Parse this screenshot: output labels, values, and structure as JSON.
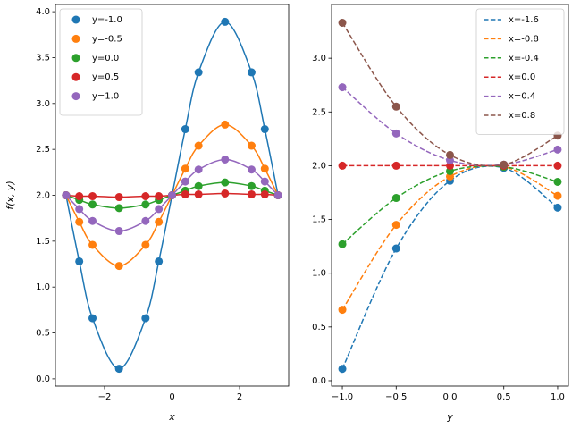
{
  "chart_data": [
    {
      "type": "line",
      "xlabel": "x",
      "ylabel": "f(x, y)",
      "linestyle": "solid",
      "markers": true,
      "legend": "upper left",
      "x": [
        -3.1416,
        -2.7489,
        -2.3562,
        -1.5708,
        -0.7854,
        -0.3927,
        0,
        0.3927,
        0.7854,
        1.5708,
        2.3562,
        2.7489,
        3.1416
      ],
      "xlim": [
        -3.456,
        3.456
      ],
      "xticks": [
        {
          "value": -2,
          "label": "−2"
        },
        0,
        2
      ],
      "ylim": [
        -0.079,
        4.079
      ],
      "yticks": [
        {
          "value": 0,
          "label": "0.0"
        },
        {
          "value": 0.5,
          "label": "0.5"
        },
        {
          "value": 1,
          "label": "1.0"
        },
        {
          "value": 1.5,
          "label": "1.5"
        },
        {
          "value": 2,
          "label": "2.0"
        },
        {
          "value": 2.5,
          "label": "2.5"
        },
        {
          "value": 3,
          "label": "3.0"
        },
        {
          "value": 3.5,
          "label": "3.5"
        },
        {
          "value": 4,
          "label": "4.0"
        }
      ],
      "series": [
        {
          "name": "y=-1.0",
          "color": "#1f77b4",
          "values": [
            2,
            1.28,
            0.66,
            0.11,
            0.66,
            1.28,
            2,
            2.72,
            3.34,
            3.89,
            3.34,
            2.72,
            2
          ]
        },
        {
          "name": "y=-0.5",
          "color": "#ff7f0e",
          "values": [
            2,
            1.71,
            1.46,
            1.23,
            1.46,
            1.71,
            2,
            2.29,
            2.54,
            2.77,
            2.54,
            2.29,
            2
          ]
        },
        {
          "name": "y=0.0",
          "color": "#2ca02c",
          "values": [
            2,
            1.95,
            1.9,
            1.86,
            1.9,
            1.95,
            2,
            2.05,
            2.1,
            2.14,
            2.1,
            2.05,
            2
          ]
        },
        {
          "name": "y=0.5",
          "color": "#d62728",
          "values": [
            2,
            1.99,
            1.99,
            1.98,
            1.99,
            1.99,
            2,
            2.01,
            2.01,
            2.02,
            2.01,
            2.01,
            2
          ]
        },
        {
          "name": "y=1.0",
          "color": "#9467bd",
          "values": [
            2,
            1.85,
            1.72,
            1.61,
            1.72,
            1.85,
            2,
            2.15,
            2.28,
            2.39,
            2.28,
            2.15,
            2
          ]
        }
      ]
    },
    {
      "type": "line",
      "xlabel": "y",
      "linestyle": "dashed",
      "markers": true,
      "legend": "upper right",
      "x": [
        -1,
        -0.5,
        0,
        0.5,
        1
      ],
      "xlim": [
        -1.1,
        1.1
      ],
      "xticks": [
        {
          "value": -1,
          "label": "−1.0"
        },
        {
          "value": -0.5,
          "label": "−0.5"
        },
        {
          "value": 0,
          "label": "0.0"
        },
        {
          "value": 0.5,
          "label": "0.5"
        },
        {
          "value": 1,
          "label": "1.0"
        }
      ],
      "ylim": [
        -0.05,
        3.5
      ],
      "yticks": [
        {
          "value": 0,
          "label": "0.0"
        },
        {
          "value": 0.5,
          "label": "0.5"
        },
        {
          "value": 1,
          "label": "1.0"
        },
        {
          "value": 1.5,
          "label": "1.5"
        },
        {
          "value": 2,
          "label": "2.0"
        },
        {
          "value": 2.5,
          "label": "2.5"
        },
        {
          "value": 3,
          "label": "3.0"
        }
      ],
      "series": [
        {
          "name": "x=-1.6",
          "color": "#1f77b4",
          "values": [
            0.11,
            1.23,
            1.86,
            1.98,
            1.61
          ]
        },
        {
          "name": "x=-0.8",
          "color": "#ff7f0e",
          "values": [
            0.66,
            1.45,
            1.9,
            1.99,
            1.72
          ]
        },
        {
          "name": "x=-0.4",
          "color": "#2ca02c",
          "values": [
            1.27,
            1.7,
            1.95,
            1.99,
            1.85
          ]
        },
        {
          "name": "x=0.0",
          "color": "#d62728",
          "values": [
            2,
            2,
            2,
            2,
            2
          ]
        },
        {
          "name": "x=0.4",
          "color": "#9467bd",
          "values": [
            2.73,
            2.3,
            2.05,
            2.01,
            2.15
          ]
        },
        {
          "name": "x=0.8",
          "color": "#8c564b",
          "values": [
            3.33,
            2.55,
            2.1,
            2.01,
            2.28
          ]
        }
      ]
    }
  ]
}
